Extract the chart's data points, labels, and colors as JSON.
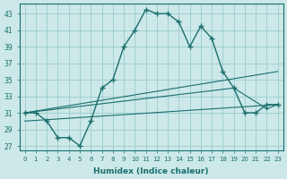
{
  "xlabel": "Humidex (Indice chaleur)",
  "bg_color": "#cce8e8",
  "grid_color": "#99cccc",
  "line_color": "#1a6e6e",
  "xlim": [
    -0.5,
    23.5
  ],
  "ylim": [
    26.5,
    44.2
  ],
  "yticks": [
    27,
    29,
    31,
    33,
    35,
    37,
    39,
    41,
    43
  ],
  "xticks": [
    0,
    1,
    2,
    3,
    4,
    5,
    6,
    7,
    8,
    9,
    10,
    11,
    12,
    13,
    14,
    15,
    16,
    17,
    18,
    19,
    20,
    21,
    22,
    23
  ],
  "series": {
    "main": {
      "x": [
        0,
        1,
        2,
        3,
        4,
        5,
        6,
        7,
        8,
        9,
        10,
        11,
        12,
        13,
        14,
        15,
        16,
        17,
        18,
        19,
        20,
        21,
        22,
        23
      ],
      "y": [
        31,
        31,
        30,
        28,
        28,
        27,
        30,
        34,
        35,
        39,
        41,
        43.5,
        43,
        43,
        42,
        39,
        41.5,
        40,
        36,
        34,
        31,
        31,
        32,
        32
      ]
    },
    "upper": {
      "x": [
        0,
        23
      ],
      "y": [
        31,
        36
      ]
    },
    "mid": {
      "x": [
        0,
        19,
        22,
        23
      ],
      "y": [
        31,
        34,
        31.5,
        32
      ]
    },
    "lower": {
      "x": [
        0,
        23
      ],
      "y": [
        30,
        32
      ]
    }
  }
}
